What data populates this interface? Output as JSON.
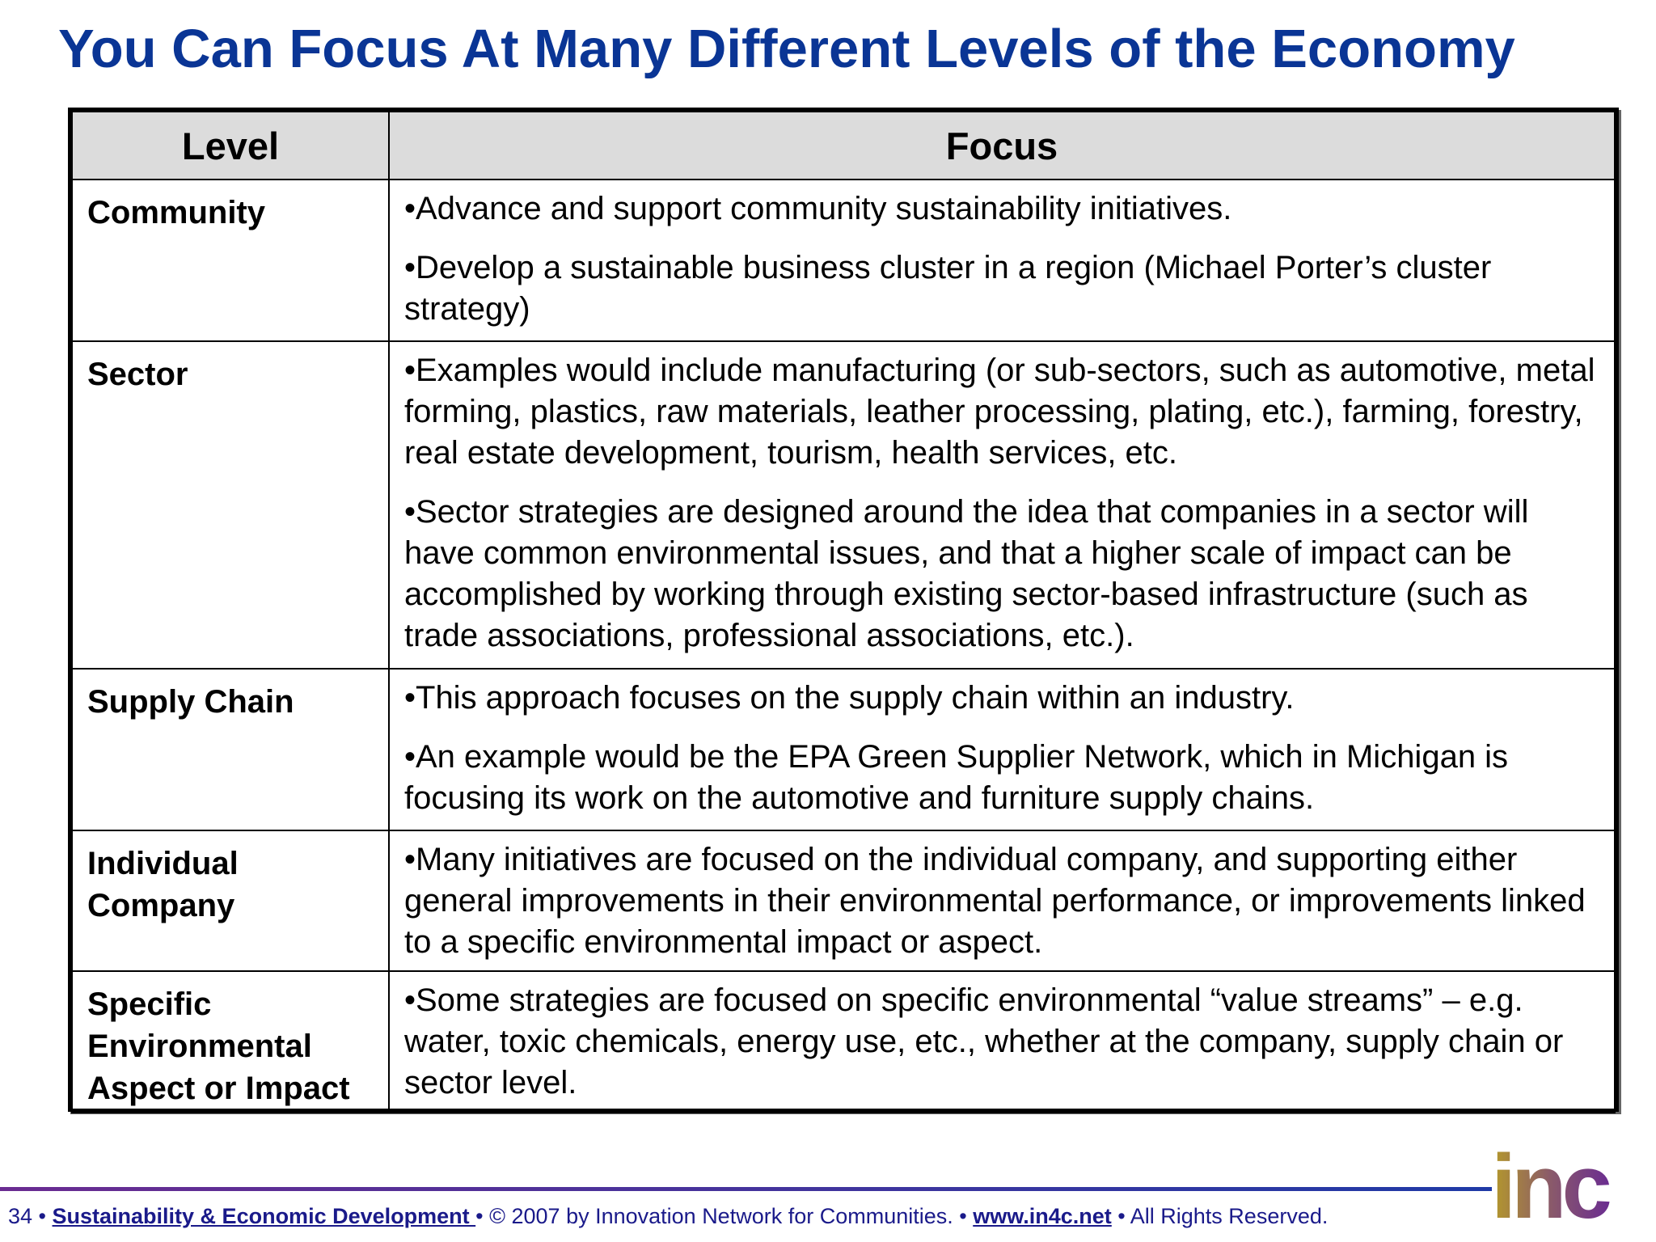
{
  "title": "You Can Focus At Many Different Levels of the Economy",
  "table": {
    "headers": {
      "level": "Level",
      "focus": "Focus"
    },
    "rows": [
      {
        "level": "Community",
        "focus": [
          "•Advance and support community sustainability initiatives.",
          "•Develop a sustainable business cluster in a region (Michael Porter’s cluster strategy)"
        ]
      },
      {
        "level": "Sector",
        "focus": [
          "•Examples would include manufacturing (or sub-sectors, such as automotive, metal forming, plastics, raw materials, leather processing, plating, etc.), farming, forestry, real estate development, tourism, health services, etc.",
          "•Sector strategies are designed around the idea that companies in a sector will have common environmental issues, and that a higher scale of impact can be accomplished by working through existing sector-based infrastructure (such as trade associations, professional associations, etc.)."
        ]
      },
      {
        "level": "Supply Chain",
        "focus": [
          "•This approach focuses on the supply chain within an industry.",
          "•An example would be the EPA Green Supplier Network, which in Michigan is focusing its work on the automotive and furniture supply chains."
        ]
      },
      {
        "level": "Individual Company",
        "focus": [
          "•Many initiatives are focused on the individual company, and supporting either general improvements in their environmental performance, or improvements linked to a specific environmental impact or aspect."
        ]
      },
      {
        "level": "Specific Environmental Aspect or Impact",
        "focus": [
          "•Some strategies are focused on specific environmental “value streams” – e.g. water, toxic chemicals, energy use, etc., whether at the company, supply chain or sector level."
        ]
      }
    ]
  },
  "footer": {
    "page_number": "34",
    "sep": " • ",
    "link1": "Sustainability & Economic Development ",
    "copyright": "© 2007 by Innovation Network for Communities.",
    "link2": "www.in4c.net",
    "rights": "All Rights Reserved."
  },
  "logo": {
    "text": "inc"
  },
  "colors": {
    "title": "#0a3595",
    "header_bg": "#dcdcdc",
    "footer": "#1a1a8a"
  }
}
